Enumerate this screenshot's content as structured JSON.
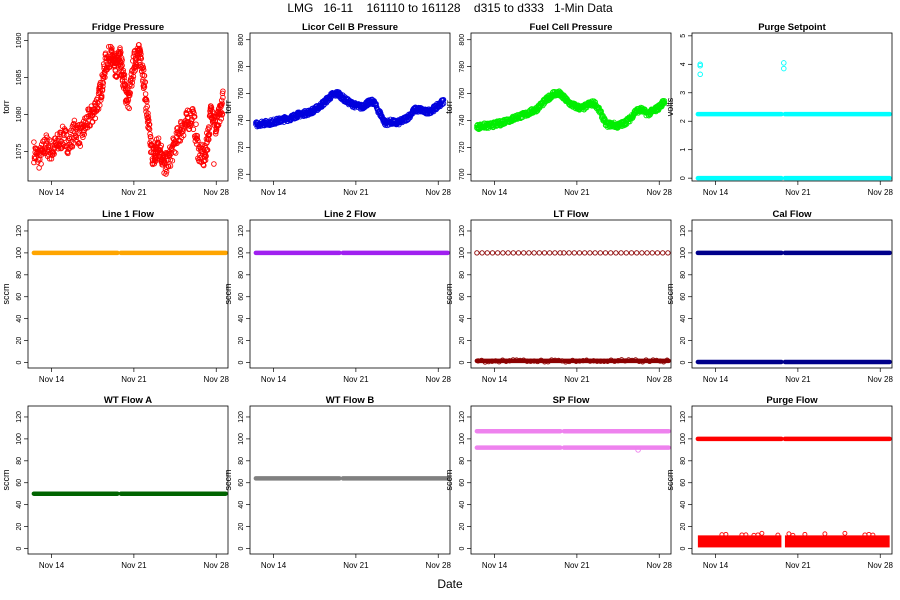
{
  "page": {
    "title": "LMG   16-11    161110 to 161128    d315 to d333   1-Min Data",
    "xlabel": "Date"
  },
  "chart_data": [
    {
      "type": "scatter",
      "title": "Fridge Pressure",
      "ylabel": "torr",
      "ylim": [
        1071,
        1091
      ],
      "yticks": [
        1075,
        1080,
        1085,
        1090
      ],
      "xlim": [
        12,
        29
      ],
      "xticks": [
        {
          "v": 14,
          "label": "Nov 14"
        },
        {
          "v": 21,
          "label": "Nov 21"
        },
        {
          "v": 28,
          "label": "Nov 28"
        }
      ],
      "color": "#ff0000",
      "mode": "band",
      "series": [
        {
          "x": [
            12.5,
            13,
            13.5,
            14,
            14.5,
            15,
            15.5,
            16,
            16.5,
            17,
            17.5,
            18,
            18.3,
            18.6,
            19,
            19.3,
            19.5,
            19.8,
            20,
            20.3,
            20.6,
            21,
            21.3,
            21.6,
            21.9,
            22.2,
            22.5,
            22.8,
            23,
            23.3,
            23.6,
            24,
            24.5,
            25,
            25.5,
            26,
            26.5,
            27,
            27.3,
            27.6,
            28,
            28.3,
            28.6
          ],
          "y": [
            1075,
            1074,
            1076,
            1075,
            1076,
            1077,
            1076,
            1078,
            1077,
            1079,
            1080,
            1082,
            1084,
            1087,
            1088,
            1087,
            1086,
            1088,
            1086,
            1083,
            1082,
            1087,
            1088,
            1088,
            1084,
            1079,
            1075,
            1074,
            1076,
            1075,
            1073,
            1074,
            1076,
            1078,
            1079,
            1080,
            1075,
            1074,
            1077,
            1081,
            1078,
            1080,
            1082
          ],
          "spread": 1.5
        }
      ]
    },
    {
      "type": "scatter",
      "title": "Licor Cell B Pressure",
      "ylabel": "torr",
      "ylim": [
        695,
        805
      ],
      "yticks": [
        700,
        720,
        740,
        760,
        780,
        800
      ],
      "xlim": [
        12,
        29
      ],
      "xticks": [
        {
          "v": 14,
          "label": "Nov 14"
        },
        {
          "v": 21,
          "label": "Nov 21"
        },
        {
          "v": 28,
          "label": "Nov 28"
        }
      ],
      "color": "#0000dd",
      "mode": "band",
      "series": [
        {
          "x": [
            12.5,
            13,
            13.5,
            14,
            14.5,
            15,
            15.5,
            16,
            16.5,
            17,
            17.5,
            18,
            18.5,
            19,
            19.5,
            20,
            20.5,
            21,
            21.5,
            22,
            22.5,
            23,
            23.5,
            24,
            24.5,
            25,
            25.5,
            26,
            26.5,
            27,
            27.5,
            28,
            28.5
          ],
          "y": [
            737,
            738,
            738,
            739,
            740,
            741,
            742,
            744,
            745,
            746,
            748,
            751,
            755,
            759,
            760,
            756,
            753,
            751,
            750,
            753,
            754,
            746,
            738,
            739,
            738,
            740,
            743,
            748,
            748,
            746,
            748,
            751,
            755
          ],
          "spread": 2
        }
      ]
    },
    {
      "type": "scatter",
      "title": "Fuel Cell Pressure",
      "ylabel": "torr",
      "ylim": [
        695,
        805
      ],
      "yticks": [
        700,
        720,
        740,
        760,
        780,
        800
      ],
      "xlim": [
        12,
        29
      ],
      "xticks": [
        {
          "v": 14,
          "label": "Nov 14"
        },
        {
          "v": 21,
          "label": "Nov 21"
        },
        {
          "v": 28,
          "label": "Nov 28"
        }
      ],
      "color": "#00ee00",
      "mode": "band",
      "series": [
        {
          "x": [
            12.5,
            13,
            13.5,
            14,
            14.5,
            15,
            15.5,
            16,
            16.5,
            17,
            17.5,
            18,
            18.5,
            19,
            19.5,
            20,
            20.5,
            21,
            21.5,
            22,
            22.5,
            23,
            23.5,
            24,
            24.5,
            25,
            25.5,
            26,
            26.5,
            27,
            27.5,
            28,
            28.5
          ],
          "y": [
            735,
            736,
            736,
            737,
            738,
            740,
            741,
            743,
            744,
            746,
            748,
            752,
            756,
            760,
            760,
            756,
            752,
            750,
            749,
            752,
            753,
            746,
            737,
            737,
            736,
            738,
            741,
            747,
            748,
            745,
            747,
            750,
            755
          ],
          "spread": 2
        }
      ]
    },
    {
      "type": "scatter",
      "title": "Purge Setpoint",
      "ylabel": "volts",
      "ylim": [
        -0.1,
        5.1
      ],
      "yticks": [
        0,
        1,
        2,
        3,
        4,
        5
      ],
      "xlim": [
        12,
        29
      ],
      "xticks": [
        {
          "v": 14,
          "label": "Nov 14"
        },
        {
          "v": 21,
          "label": "Nov 21"
        },
        {
          "v": 28,
          "label": "Nov 28"
        }
      ],
      "color": "#00ffff",
      "mode": "lines",
      "segments": [
        {
          "x0": 12.5,
          "x1": 19.6
        },
        {
          "x0": 19.9,
          "x1": 28.8
        }
      ],
      "levels": [
        2.25,
        0.0
      ],
      "outliers": [
        {
          "x": 12.7,
          "y": 4.0
        },
        {
          "x": 12.7,
          "y": 3.95
        },
        {
          "x": 12.7,
          "y": 3.65
        },
        {
          "x": 19.8,
          "y": 4.05
        },
        {
          "x": 19.8,
          "y": 3.85
        }
      ]
    },
    {
      "type": "scatter",
      "title": "Line 1 Flow",
      "ylabel": "sccm",
      "ylim": [
        -5,
        130
      ],
      "yticks": [
        0,
        20,
        40,
        60,
        80,
        100,
        120
      ],
      "xlim": [
        12,
        29
      ],
      "xticks": [
        {
          "v": 14,
          "label": "Nov 14"
        },
        {
          "v": 21,
          "label": "Nov 21"
        },
        {
          "v": 28,
          "label": "Nov 28"
        }
      ],
      "color": "#ffa500",
      "mode": "lines",
      "segments": [
        {
          "x0": 12.5,
          "x1": 19.6
        },
        {
          "x0": 19.9,
          "x1": 28.8
        }
      ],
      "levels": [
        100
      ]
    },
    {
      "type": "scatter",
      "title": "Line 2 Flow",
      "ylabel": "sccm",
      "ylim": [
        -5,
        130
      ],
      "yticks": [
        0,
        20,
        40,
        60,
        80,
        100,
        120
      ],
      "xlim": [
        12,
        29
      ],
      "xticks": [
        {
          "v": 14,
          "label": "Nov 14"
        },
        {
          "v": 21,
          "label": "Nov 21"
        },
        {
          "v": 28,
          "label": "Nov 28"
        }
      ],
      "color": "#a020f0",
      "mode": "lines",
      "segments": [
        {
          "x0": 12.5,
          "x1": 19.6
        },
        {
          "x0": 19.9,
          "x1": 28.8
        }
      ],
      "levels": [
        100
      ]
    },
    {
      "type": "scatter",
      "title": "LT Flow",
      "ylabel": "sccm",
      "ylim": [
        -5,
        130
      ],
      "yticks": [
        0,
        20,
        40,
        60,
        80,
        100,
        120
      ],
      "xlim": [
        12,
        29
      ],
      "xticks": [
        {
          "v": 14,
          "label": "Nov 14"
        },
        {
          "v": 21,
          "label": "Nov 21"
        },
        {
          "v": 28,
          "label": "Nov 28"
        }
      ],
      "color": "#8b0000",
      "mode": "lines",
      "segments": [
        {
          "x0": 12.5,
          "x1": 19.6
        },
        {
          "x0": 19.9,
          "x1": 28.8
        }
      ],
      "levels": [
        100,
        1.5
      ],
      "dotted_level": 100
    },
    {
      "type": "scatter",
      "title": "Cal Flow",
      "ylabel": "sccm",
      "ylim": [
        -5,
        130
      ],
      "yticks": [
        0,
        20,
        40,
        60,
        80,
        100,
        120
      ],
      "xlim": [
        12,
        29
      ],
      "xticks": [
        {
          "v": 14,
          "label": "Nov 14"
        },
        {
          "v": 21,
          "label": "Nov 21"
        },
        {
          "v": 28,
          "label": "Nov 28"
        }
      ],
      "color": "#00008b",
      "mode": "lines",
      "segments": [
        {
          "x0": 12.5,
          "x1": 19.6
        },
        {
          "x0": 19.9,
          "x1": 28.8
        }
      ],
      "levels": [
        100,
        0.5
      ]
    },
    {
      "type": "scatter",
      "title": "WT Flow A",
      "ylabel": "sccm",
      "ylim": [
        -5,
        130
      ],
      "yticks": [
        0,
        20,
        40,
        60,
        80,
        100,
        120
      ],
      "xlim": [
        12,
        29
      ],
      "xticks": [
        {
          "v": 14,
          "label": "Nov 14"
        },
        {
          "v": 21,
          "label": "Nov 21"
        },
        {
          "v": 28,
          "label": "Nov 28"
        }
      ],
      "color": "#006400",
      "mode": "lines",
      "segments": [
        {
          "x0": 12.5,
          "x1": 19.6
        },
        {
          "x0": 19.9,
          "x1": 28.8
        }
      ],
      "levels": [
        50
      ]
    },
    {
      "type": "scatter",
      "title": "WT Flow B",
      "ylabel": "sccm",
      "ylim": [
        -5,
        130
      ],
      "yticks": [
        0,
        20,
        40,
        60,
        80,
        100,
        120
      ],
      "xlim": [
        12,
        29
      ],
      "xticks": [
        {
          "v": 14,
          "label": "Nov 14"
        },
        {
          "v": 21,
          "label": "Nov 21"
        },
        {
          "v": 28,
          "label": "Nov 28"
        }
      ],
      "color": "#808080",
      "mode": "lines",
      "segments": [
        {
          "x0": 12.5,
          "x1": 19.6
        },
        {
          "x0": 19.9,
          "x1": 28.8
        }
      ],
      "levels": [
        64
      ]
    },
    {
      "type": "scatter",
      "title": "SP Flow",
      "ylabel": "sccm",
      "ylim": [
        -5,
        130
      ],
      "yticks": [
        0,
        20,
        40,
        60,
        80,
        100,
        120
      ],
      "xlim": [
        12,
        29
      ],
      "xticks": [
        {
          "v": 14,
          "label": "Nov 14"
        },
        {
          "v": 21,
          "label": "Nov 21"
        },
        {
          "v": 28,
          "label": "Nov 28"
        }
      ],
      "color": "#ee82ee",
      "mode": "lines",
      "segments": [
        {
          "x0": 12.5,
          "x1": 19.6
        },
        {
          "x0": 19.9,
          "x1": 28.8
        }
      ],
      "levels": [
        107,
        92
      ]
    },
    {
      "type": "scatter",
      "title": "Purge Flow",
      "ylabel": "sccm",
      "ylim": [
        -5,
        130
      ],
      "yticks": [
        0,
        20,
        40,
        60,
        80,
        100,
        120
      ],
      "xlim": [
        12,
        29
      ],
      "xticks": [
        {
          "v": 14,
          "label": "Nov 14"
        },
        {
          "v": 21,
          "label": "Nov 21"
        },
        {
          "v": 28,
          "label": "Nov 28"
        }
      ],
      "color": "#ff0000",
      "mode": "lines",
      "segments": [
        {
          "x0": 12.5,
          "x1": 19.6
        },
        {
          "x0": 19.9,
          "x1": 28.8
        }
      ],
      "levels": [
        100
      ],
      "noise_band": [
        1,
        12
      ]
    }
  ]
}
